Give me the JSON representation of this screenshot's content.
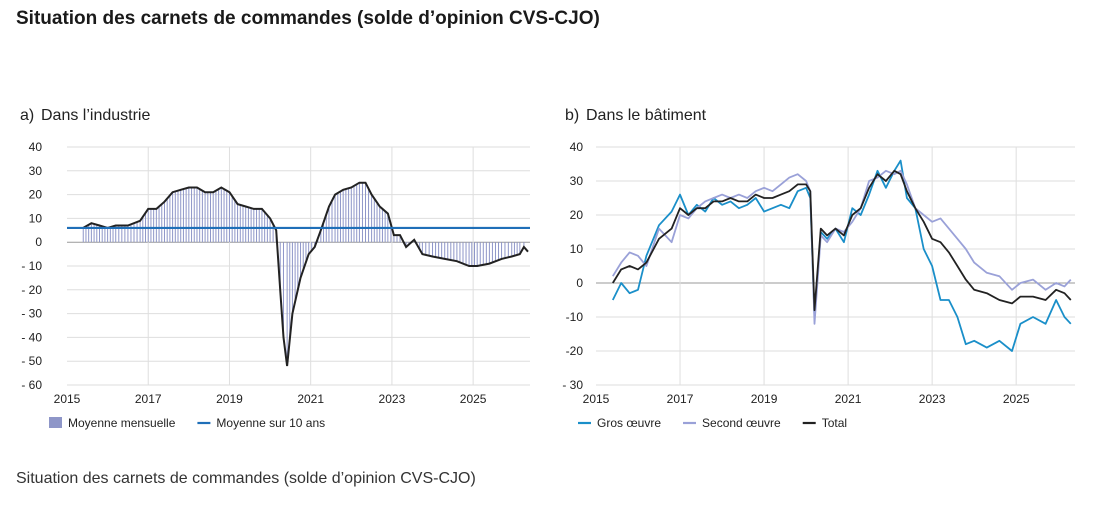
{
  "page": {
    "title": "Situation des carnets de commandes (solde d’opinion CVS-CJO)",
    "caption": "Situation des carnets de commandes (solde d’opinion CVS-CJO)"
  },
  "chart_data": [
    {
      "type": "bar",
      "panel_label": "a)",
      "title": "Dans l’industrie",
      "xlabel": "",
      "ylabel": "",
      "x_ticks": [
        "2015",
        "2017",
        "2019",
        "2021",
        "2023",
        "2025"
      ],
      "y_ticks": [
        "40",
        "30",
        "20",
        "10",
        "0",
        "- 10",
        "- 20",
        "- 30",
        "- 40",
        "- 50",
        "- 60"
      ],
      "xlim": [
        2015,
        2026.4
      ],
      "ylim": [
        -60,
        40
      ],
      "grid": true,
      "legend_position": "bottom",
      "series": [
        {
          "name": "Moyenne mensuelle",
          "kind": "bar",
          "color": "#8e96c8",
          "points": [
            [
              2015.4,
              6
            ],
            [
              2015.6,
              8
            ],
            [
              2015.8,
              7
            ],
            [
              2016.0,
              6
            ],
            [
              2016.2,
              7
            ],
            [
              2016.5,
              7
            ],
            [
              2016.8,
              9
            ],
            [
              2017.0,
              14
            ],
            [
              2017.2,
              14
            ],
            [
              2017.4,
              17
            ],
            [
              2017.6,
              21
            ],
            [
              2017.8,
              22
            ],
            [
              2018.0,
              23
            ],
            [
              2018.2,
              23
            ],
            [
              2018.4,
              21
            ],
            [
              2018.6,
              21
            ],
            [
              2018.8,
              23
            ],
            [
              2019.0,
              21
            ],
            [
              2019.2,
              16
            ],
            [
              2019.4,
              15
            ],
            [
              2019.6,
              14
            ],
            [
              2019.8,
              14
            ],
            [
              2020.0,
              10
            ],
            [
              2020.15,
              5
            ],
            [
              2020.25,
              -20
            ],
            [
              2020.33,
              -40
            ],
            [
              2020.42,
              -52
            ],
            [
              2020.55,
              -30
            ],
            [
              2020.75,
              -15
            ],
            [
              2020.95,
              -5
            ],
            [
              2021.1,
              -2
            ],
            [
              2021.25,
              5
            ],
            [
              2021.45,
              15
            ],
            [
              2021.6,
              20
            ],
            [
              2021.8,
              22
            ],
            [
              2022.0,
              23
            ],
            [
              2022.2,
              25
            ],
            [
              2022.35,
              25
            ],
            [
              2022.5,
              20
            ],
            [
              2022.7,
              15
            ],
            [
              2022.9,
              12
            ],
            [
              2023.05,
              3
            ],
            [
              2023.2,
              3
            ],
            [
              2023.35,
              -2
            ],
            [
              2023.55,
              1
            ],
            [
              2023.75,
              -5
            ],
            [
              2024.0,
              -6
            ],
            [
              2024.3,
              -7
            ],
            [
              2024.6,
              -8
            ],
            [
              2024.9,
              -10
            ],
            [
              2025.1,
              -10
            ],
            [
              2025.4,
              -9
            ],
            [
              2025.7,
              -7
            ],
            [
              2025.95,
              -6
            ],
            [
              2026.15,
              -5
            ],
            [
              2026.25,
              -2
            ],
            [
              2026.35,
              -4
            ]
          ]
        },
        {
          "name": "Moyenne sur 10 ans",
          "kind": "line",
          "color": "#1f6fb8",
          "value": 6
        }
      ]
    },
    {
      "type": "line",
      "panel_label": "b)",
      "title": "Dans le bâtiment",
      "xlabel": "",
      "ylabel": "",
      "x_ticks": [
        "2015",
        "2017",
        "2019",
        "2021",
        "2023",
        "2025"
      ],
      "y_ticks": [
        "40",
        "30",
        "20",
        "10",
        "0",
        "-10",
        "-20",
        "- 30"
      ],
      "xlim": [
        2015,
        2026.4
      ],
      "ylim": [
        -30,
        40
      ],
      "grid": true,
      "legend_position": "bottom",
      "series": [
        {
          "name": "Gros œuvre",
          "color": "#1a8fc9",
          "points": [
            [
              2015.4,
              -5
            ],
            [
              2015.6,
              0
            ],
            [
              2015.8,
              -3
            ],
            [
              2016.0,
              -2
            ],
            [
              2016.2,
              8
            ],
            [
              2016.5,
              17
            ],
            [
              2016.8,
              21
            ],
            [
              2017.0,
              26
            ],
            [
              2017.2,
              20
            ],
            [
              2017.4,
              23
            ],
            [
              2017.6,
              21
            ],
            [
              2017.8,
              25
            ],
            [
              2018.0,
              23
            ],
            [
              2018.2,
              24
            ],
            [
              2018.4,
              22
            ],
            [
              2018.6,
              23
            ],
            [
              2018.8,
              25
            ],
            [
              2019.0,
              21
            ],
            [
              2019.2,
              22
            ],
            [
              2019.4,
              23
            ],
            [
              2019.6,
              22
            ],
            [
              2019.8,
              27
            ],
            [
              2020.0,
              28
            ],
            [
              2020.1,
              25
            ],
            [
              2020.2,
              -10
            ],
            [
              2020.35,
              15
            ],
            [
              2020.5,
              13
            ],
            [
              2020.7,
              16
            ],
            [
              2020.9,
              12
            ],
            [
              2021.1,
              22
            ],
            [
              2021.3,
              20
            ],
            [
              2021.5,
              26
            ],
            [
              2021.7,
              33
            ],
            [
              2021.9,
              28
            ],
            [
              2022.1,
              33
            ],
            [
              2022.25,
              36
            ],
            [
              2022.4,
              25
            ],
            [
              2022.6,
              22
            ],
            [
              2022.8,
              10
            ],
            [
              2023.0,
              5
            ],
            [
              2023.2,
              -5
            ],
            [
              2023.4,
              -5
            ],
            [
              2023.6,
              -10
            ],
            [
              2023.8,
              -18
            ],
            [
              2024.0,
              -17
            ],
            [
              2024.3,
              -19
            ],
            [
              2024.6,
              -17
            ],
            [
              2024.9,
              -20
            ],
            [
              2025.1,
              -12
            ],
            [
              2025.4,
              -10
            ],
            [
              2025.7,
              -12
            ],
            [
              2025.95,
              -5
            ],
            [
              2026.15,
              -10
            ],
            [
              2026.3,
              -12
            ]
          ]
        },
        {
          "name": "Second œuvre",
          "color": "#9aa1d8",
          "points": [
            [
              2015.4,
              2
            ],
            [
              2015.6,
              6
            ],
            [
              2015.8,
              9
            ],
            [
              2016.0,
              8
            ],
            [
              2016.2,
              5
            ],
            [
              2016.5,
              16
            ],
            [
              2016.8,
              12
            ],
            [
              2017.0,
              20
            ],
            [
              2017.2,
              19
            ],
            [
              2017.4,
              22
            ],
            [
              2017.6,
              24
            ],
            [
              2017.8,
              25
            ],
            [
              2018.0,
              26
            ],
            [
              2018.2,
              25
            ],
            [
              2018.4,
              26
            ],
            [
              2018.6,
              25
            ],
            [
              2018.8,
              27
            ],
            [
              2019.0,
              28
            ],
            [
              2019.2,
              27
            ],
            [
              2019.4,
              29
            ],
            [
              2019.6,
              31
            ],
            [
              2019.8,
              32
            ],
            [
              2020.0,
              30
            ],
            [
              2020.1,
              27
            ],
            [
              2020.2,
              -12
            ],
            [
              2020.35,
              14
            ],
            [
              2020.5,
              12
            ],
            [
              2020.7,
              16
            ],
            [
              2020.9,
              15
            ],
            [
              2021.1,
              18
            ],
            [
              2021.3,
              22
            ],
            [
              2021.5,
              30
            ],
            [
              2021.7,
              31
            ],
            [
              2021.9,
              33
            ],
            [
              2022.1,
              32
            ],
            [
              2022.25,
              33
            ],
            [
              2022.4,
              29
            ],
            [
              2022.6,
              22
            ],
            [
              2022.8,
              20
            ],
            [
              2023.0,
              18
            ],
            [
              2023.2,
              19
            ],
            [
              2023.4,
              16
            ],
            [
              2023.6,
              13
            ],
            [
              2023.8,
              10
            ],
            [
              2024.0,
              6
            ],
            [
              2024.3,
              3
            ],
            [
              2024.6,
              2
            ],
            [
              2024.9,
              -2
            ],
            [
              2025.1,
              0
            ],
            [
              2025.4,
              1
            ],
            [
              2025.7,
              -2
            ],
            [
              2025.95,
              0
            ],
            [
              2026.15,
              -1
            ],
            [
              2026.3,
              1
            ]
          ]
        },
        {
          "name": "Total",
          "color": "#222222",
          "points": [
            [
              2015.4,
              0
            ],
            [
              2015.6,
              4
            ],
            [
              2015.8,
              5
            ],
            [
              2016.0,
              4
            ],
            [
              2016.2,
              6
            ],
            [
              2016.5,
              13
            ],
            [
              2016.8,
              16
            ],
            [
              2017.0,
              22
            ],
            [
              2017.2,
              20
            ],
            [
              2017.4,
              22
            ],
            [
              2017.6,
              22
            ],
            [
              2017.8,
              24
            ],
            [
              2018.0,
              24
            ],
            [
              2018.2,
              25
            ],
            [
              2018.4,
              24
            ],
            [
              2018.6,
              24
            ],
            [
              2018.8,
              26
            ],
            [
              2019.0,
              25
            ],
            [
              2019.2,
              25
            ],
            [
              2019.4,
              26
            ],
            [
              2019.6,
              27
            ],
            [
              2019.8,
              29
            ],
            [
              2020.0,
              29
            ],
            [
              2020.1,
              27
            ],
            [
              2020.2,
              -8
            ],
            [
              2020.35,
              16
            ],
            [
              2020.5,
              14
            ],
            [
              2020.7,
              16
            ],
            [
              2020.9,
              14
            ],
            [
              2021.1,
              20
            ],
            [
              2021.3,
              22
            ],
            [
              2021.5,
              28
            ],
            [
              2021.7,
              32
            ],
            [
              2021.9,
              30
            ],
            [
              2022.1,
              33
            ],
            [
              2022.25,
              32
            ],
            [
              2022.4,
              27
            ],
            [
              2022.6,
              22
            ],
            [
              2022.8,
              18
            ],
            [
              2023.0,
              13
            ],
            [
              2023.2,
              12
            ],
            [
              2023.4,
              9
            ],
            [
              2023.6,
              5
            ],
            [
              2023.8,
              1
            ],
            [
              2024.0,
              -2
            ],
            [
              2024.3,
              -3
            ],
            [
              2024.6,
              -5
            ],
            [
              2024.9,
              -6
            ],
            [
              2025.1,
              -4
            ],
            [
              2025.4,
              -4
            ],
            [
              2025.7,
              -5
            ],
            [
              2025.95,
              -2
            ],
            [
              2026.15,
              -3
            ],
            [
              2026.3,
              -5
            ]
          ]
        }
      ]
    }
  ]
}
